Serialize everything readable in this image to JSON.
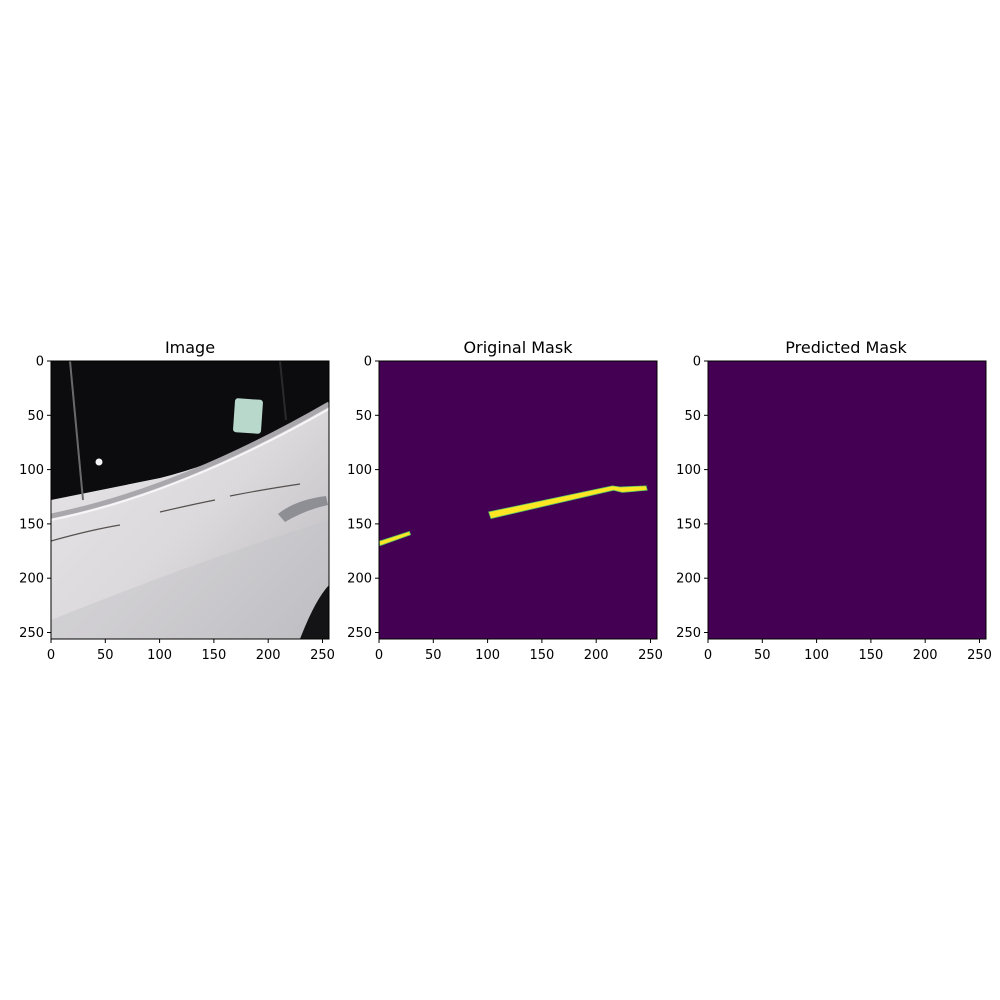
{
  "figure": {
    "panels": [
      {
        "id": "image",
        "title": "Image",
        "content": "photo of a white car door with a scratch",
        "x_ticks": [
          "0",
          "50",
          "100",
          "150",
          "200",
          "250"
        ],
        "y_ticks": [
          "0",
          "50",
          "100",
          "150",
          "200",
          "250"
        ]
      },
      {
        "id": "original-mask",
        "title": "Original Mask",
        "content": "segmentation mask",
        "x_ticks": [
          "0",
          "50",
          "100",
          "150",
          "200",
          "250"
        ],
        "y_ticks": [
          "0",
          "50",
          "100",
          "150",
          "200",
          "250"
        ]
      },
      {
        "id": "predicted-mask",
        "title": "Predicted Mask",
        "content": "segmentation mask",
        "x_ticks": [
          "0",
          "50",
          "100",
          "150",
          "200",
          "250"
        ],
        "y_ticks": [
          "0",
          "50",
          "100",
          "150",
          "200",
          "250"
        ]
      }
    ],
    "axis_range": [
      0,
      256
    ],
    "colors": {
      "mask_background": "#440154",
      "mask_foreground": "#fde725",
      "mask_edge": "#5ec962"
    },
    "original_mask_regions": [
      {
        "points": [
          [
            0,
            166
          ],
          [
            28,
            157
          ],
          [
            29,
            160
          ],
          [
            1,
            170
          ]
        ]
      },
      {
        "points": [
          [
            101,
            139
          ],
          [
            215,
            115
          ],
          [
            222,
            116
          ],
          [
            246,
            115
          ],
          [
            247,
            119
          ],
          [
            224,
            121
          ],
          [
            216,
            119
          ],
          [
            103,
            145
          ]
        ]
      }
    ]
  }
}
